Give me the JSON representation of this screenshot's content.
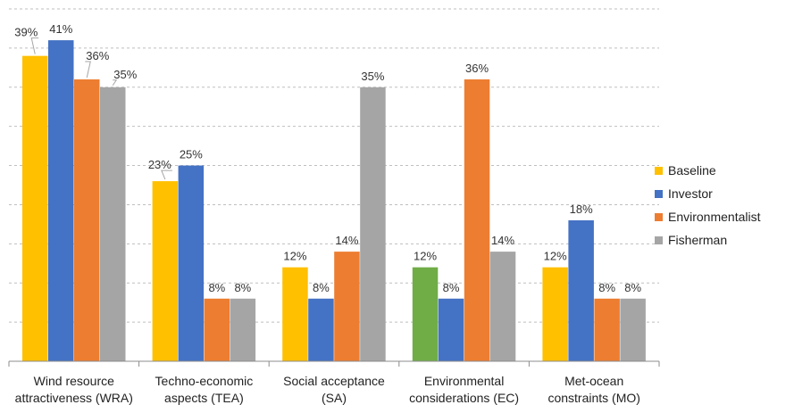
{
  "chart_data": {
    "type": "bar",
    "categories": [
      "Wind resource attractiveness (WRA)",
      "Techno-economic aspects (TEA)",
      "Social acceptance (SA)",
      "Environmental considerations (EC)",
      "Met-ocean constraints (MO)"
    ],
    "category_lines": [
      [
        "Wind resource",
        "attractiveness (WRA)"
      ],
      [
        "Techno-economic",
        "aspects (TEA)"
      ],
      [
        "Social acceptance",
        "(SA)"
      ],
      [
        "Environmental",
        "considerations (EC)"
      ],
      [
        "Met-ocean",
        "constraints (MO)"
      ]
    ],
    "series": [
      {
        "name": "Baseline",
        "color": "#FFC000",
        "values": [
          39,
          23,
          12,
          12,
          12
        ],
        "labels": [
          "39%",
          "23%",
          "12%",
          "12%",
          "12%"
        ]
      },
      {
        "name": "Investor",
        "color": "#4472C4",
        "values": [
          41,
          25,
          8,
          8,
          18
        ],
        "labels": [
          "41%",
          "25%",
          "8%",
          "8%",
          "18%"
        ]
      },
      {
        "name": "Environmentalist",
        "color": "#ED7D31",
        "values": [
          36,
          8,
          14,
          36,
          8
        ],
        "labels": [
          "36%",
          "8%",
          "14%",
          "36%",
          "8%"
        ]
      },
      {
        "name": "Fisherman",
        "color": "#A5A5A5",
        "values": [
          35,
          8,
          35,
          14,
          8
        ],
        "labels": [
          "35%",
          "8%",
          "35%",
          "14%",
          "8%"
        ]
      }
    ],
    "point_colors": {
      "3-0": "#70AD47"
    },
    "ylim": [
      0,
      45
    ],
    "gridline_step": 5,
    "grid": true,
    "legend_position": "right",
    "title": "",
    "xlabel": "",
    "ylabel": ""
  }
}
